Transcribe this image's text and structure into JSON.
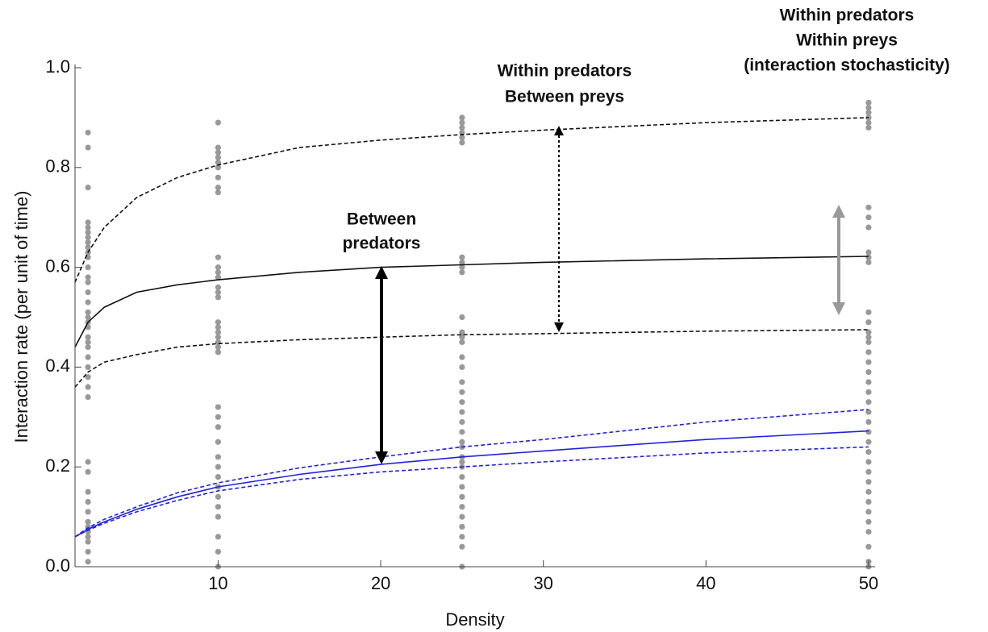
{
  "chart_data": {
    "type": "line",
    "x_label": "Density",
    "y_label": "Interaction rate (per unit of time)",
    "xlim": [
      1.2,
      50.4
    ],
    "ylim": [
      0,
      1.0
    ],
    "xticks": [
      10,
      20,
      30,
      40,
      50
    ],
    "yticks": [
      {
        "value": 0,
        "label": "0.0"
      },
      0.2,
      0.4,
      0.6,
      0.8,
      {
        "value": 1.0,
        "label": "1.0"
      }
    ],
    "x": [
      1.2,
      2,
      3,
      5,
      7.5,
      10,
      15,
      20,
      25,
      30,
      40,
      50
    ],
    "series": [
      {
        "color": "#111111",
        "dash": false,
        "values": [
          0.44,
          0.49,
          0.52,
          0.55,
          0.565,
          0.575,
          0.59,
          0.6,
          0.605,
          0.61,
          0.617,
          0.622
        ]
      },
      {
        "color": "#111111",
        "dash": true,
        "values": [
          0.57,
          0.63,
          0.68,
          0.74,
          0.78,
          0.805,
          0.84,
          0.855,
          0.866,
          0.875,
          0.89,
          0.9
        ]
      },
      {
        "color": "#111111",
        "dash": true,
        "values": [
          0.36,
          0.39,
          0.41,
          0.425,
          0.44,
          0.447,
          0.455,
          0.46,
          0.465,
          0.467,
          0.472,
          0.475
        ]
      },
      {
        "color": "#2222dd",
        "dash": false,
        "values": [
          0.06,
          0.075,
          0.09,
          0.115,
          0.14,
          0.16,
          0.185,
          0.205,
          0.22,
          0.232,
          0.255,
          0.272
        ]
      },
      {
        "color": "#2222dd",
        "dash": true,
        "values": [
          0.06,
          0.078,
          0.095,
          0.12,
          0.148,
          0.168,
          0.198,
          0.22,
          0.24,
          0.255,
          0.29,
          0.315
        ]
      },
      {
        "color": "#2222dd",
        "dash": true,
        "values": [
          0.06,
          0.073,
          0.087,
          0.11,
          0.133,
          0.152,
          0.175,
          0.19,
          0.2,
          0.21,
          0.228,
          0.24
        ]
      }
    ],
    "points": [
      {
        "color": "#999999",
        "x": [
          2,
          2,
          2,
          2,
          2,
          2,
          2,
          2,
          2,
          2,
          2,
          2,
          2,
          2,
          2,
          2,
          2,
          2,
          2,
          2,
          2,
          2,
          2,
          2,
          2,
          2,
          2,
          2,
          2,
          2,
          2,
          2,
          2,
          2,
          2,
          2,
          2,
          2,
          2,
          2
        ],
        "values": [
          0.87,
          0.84,
          0.76,
          0.69,
          0.68,
          0.67,
          0.66,
          0.65,
          0.64,
          0.63,
          0.62,
          0.6,
          0.58,
          0.57,
          0.55,
          0.53,
          0.51,
          0.5,
          0.49,
          0.48,
          0.46,
          0.45,
          0.44,
          0.42,
          0.4,
          0.38,
          0.36,
          0.34,
          0.21,
          0.19,
          0.15,
          0.13,
          0.11,
          0.09,
          0.08,
          0.07,
          0.06,
          0.05,
          0.03,
          0.01
        ]
      },
      {
        "color": "#999999",
        "x": [
          10,
          10,
          10,
          10,
          10,
          10,
          10,
          10,
          10,
          10,
          10,
          10,
          10,
          10,
          10,
          10,
          10,
          10,
          10,
          10,
          10,
          10,
          10,
          10,
          10,
          10,
          10,
          10,
          10,
          10,
          10,
          10,
          10,
          10,
          10,
          10,
          10
        ],
        "values": [
          0.89,
          0.84,
          0.83,
          0.82,
          0.81,
          0.8,
          0.78,
          0.76,
          0.75,
          0.62,
          0.6,
          0.59,
          0.58,
          0.56,
          0.55,
          0.54,
          0.49,
          0.48,
          0.47,
          0.46,
          0.45,
          0.44,
          0.43,
          0.32,
          0.3,
          0.28,
          0.25,
          0.22,
          0.2,
          0.18,
          0.16,
          0.14,
          0.12,
          0.1,
          0.06,
          0.03,
          0
        ]
      },
      {
        "color": "#999999",
        "x": [
          25,
          25,
          25,
          25,
          25,
          25,
          25,
          25,
          25,
          25,
          25,
          25,
          25,
          25,
          25,
          25,
          25,
          25,
          25,
          25,
          25,
          25,
          25,
          25,
          25,
          25,
          25,
          25,
          25,
          25,
          25,
          25,
          25,
          25,
          25,
          25
        ],
        "values": [
          0.9,
          0.89,
          0.88,
          0.87,
          0.86,
          0.85,
          0.62,
          0.61,
          0.6,
          0.59,
          0.5,
          0.47,
          0.46,
          0.45,
          0.42,
          0.4,
          0.37,
          0.35,
          0.33,
          0.31,
          0.29,
          0.27,
          0.25,
          0.24,
          0.22,
          0.21,
          0.2,
          0.18,
          0.16,
          0.14,
          0.12,
          0.1,
          0.08,
          0.06,
          0.04,
          0
        ]
      },
      {
        "color": "#999999",
        "x": [
          50,
          50,
          50,
          50,
          50,
          50,
          50,
          50,
          50,
          50,
          50,
          50,
          50,
          50,
          50,
          50,
          50,
          50,
          50,
          50,
          50,
          50,
          50,
          50,
          50,
          50,
          50,
          50,
          50,
          50,
          50,
          50,
          50,
          50,
          50,
          50,
          50,
          50,
          50
        ],
        "values": [
          0.93,
          0.92,
          0.91,
          0.9,
          0.89,
          0.88,
          0.72,
          0.7,
          0.68,
          0.63,
          0.62,
          0.61,
          0.51,
          0.49,
          0.47,
          0.46,
          0.45,
          0.43,
          0.41,
          0.39,
          0.37,
          0.35,
          0.33,
          0.31,
          0.29,
          0.27,
          0.25,
          0.23,
          0.21,
          0.19,
          0.17,
          0.15,
          0.13,
          0.11,
          0.09,
          0.07,
          0.04,
          0.01,
          0
        ]
      }
    ],
    "annotations": [
      [
        "Between",
        "predators"
      ],
      [
        "Within predators",
        "Between preys"
      ],
      [
        "Within predators",
        "Within preys",
        "(interaction stochasticity)"
      ]
    ]
  }
}
